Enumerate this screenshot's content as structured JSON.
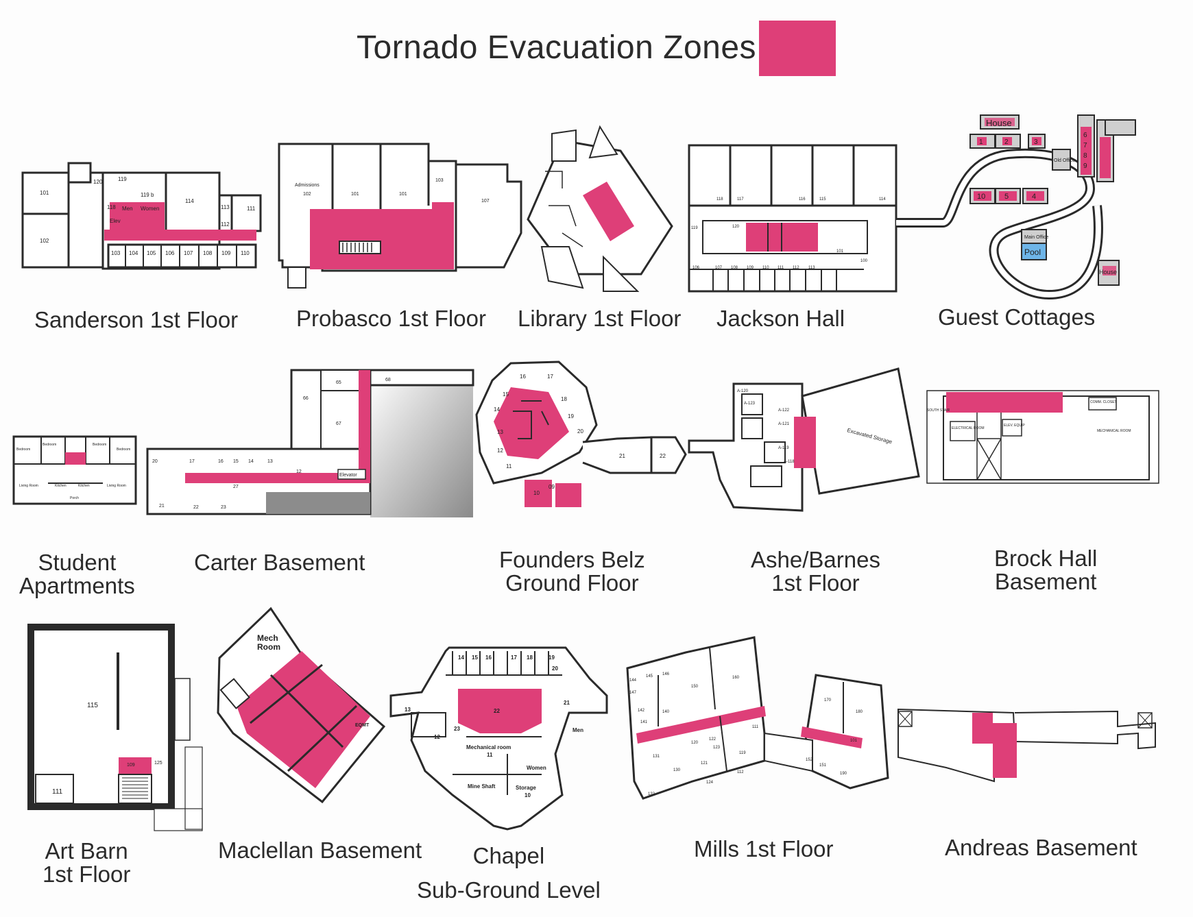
{
  "title": "Tornado Evacuation Zones",
  "colors": {
    "zone": "#de3f78",
    "line": "#2a2a2a",
    "pool": "#6eb5e8",
    "cottage_fill": "#cfcfcf"
  },
  "buildings": [
    {
      "id": "sanderson",
      "caption": "Sanderson 1st Floor",
      "rooms": [
        "101",
        "102",
        "119",
        "119 b",
        "114",
        "113",
        "112",
        "111",
        "120",
        "118",
        "103",
        "104",
        "105",
        "106",
        "107",
        "108",
        "109",
        "110",
        "Elev",
        "Men",
        "Women"
      ]
    },
    {
      "id": "probasco",
      "caption": "Probasco 1st Floor",
      "rooms": [
        "Admissions",
        "102",
        "101",
        "101",
        "103",
        "107"
      ]
    },
    {
      "id": "library",
      "caption": "Library 1st Floor",
      "rooms": []
    },
    {
      "id": "jackson",
      "caption": "Jackson Hall",
      "rooms": [
        "118",
        "117",
        "116",
        "115",
        "114",
        "119",
        "120",
        "101",
        "100",
        "106",
        "107",
        "108",
        "109",
        "110",
        "111",
        "112",
        "113"
      ]
    },
    {
      "id": "cottages",
      "caption": "Guest Cottages",
      "rooms": [
        "House",
        "1",
        "2",
        "3",
        "6",
        "7",
        "8",
        "9",
        "Old Office",
        "10",
        "5",
        "4",
        "Main Office",
        "Pool",
        "House"
      ]
    },
    {
      "id": "student-apts",
      "caption": "Student\nApartments",
      "rooms": [
        "Bedroom",
        "Bedroom",
        "Bedroom",
        "Bedroom",
        "Living Room",
        "Kitchen",
        "Kitchen",
        "Living Room",
        "Porch"
      ]
    },
    {
      "id": "carter",
      "caption": "Carter Basement",
      "rooms": [
        "65",
        "68",
        "66",
        "67",
        "20",
        "17",
        "16",
        "15",
        "14",
        "13",
        "12",
        "27",
        "21",
        "22",
        "23",
        "Elevator"
      ]
    },
    {
      "id": "founders",
      "caption": "Founders Belz\nGround Floor",
      "rooms": [
        "16",
        "17",
        "15",
        "18",
        "14",
        "19",
        "13",
        "20",
        "12",
        "11",
        "09",
        "10",
        "21",
        "22"
      ]
    },
    {
      "id": "ashe",
      "caption": "Ashe/Barnes\n1st Floor",
      "rooms": [
        "A-120",
        "A-123",
        "A-122",
        "A-121",
        "A-119",
        "A-118",
        "Excavated Storage"
      ]
    },
    {
      "id": "brock",
      "caption": "Brock Hall\nBasement",
      "rooms": [
        "SOUTH STAIR",
        "ELECTRICAL ROOM",
        "ELEV. EQUIP",
        "MECHANICAL ROOM",
        "COMM. CLOSET"
      ]
    },
    {
      "id": "art-barn",
      "caption": "Art Barn\n1st Floor",
      "rooms": [
        "115",
        "111",
        "109",
        "125"
      ]
    },
    {
      "id": "maclellan",
      "caption": "Maclellan Basement",
      "rooms": [
        "Mech\nRoom",
        "EQMT"
      ]
    },
    {
      "id": "chapel",
      "caption": "Chapel\nSub-Ground Level",
      "rooms": [
        "14",
        "15",
        "16",
        "17",
        "18",
        "19",
        "20",
        "13",
        "22",
        "21",
        "23",
        "12",
        "Men",
        "Mechanical room",
        "11",
        "Women",
        "Mine Shaft",
        "Storage",
        "10"
      ]
    },
    {
      "id": "mills",
      "caption": "Mills 1st Floor",
      "rooms": [
        "144",
        "145",
        "146",
        "147",
        "142",
        "141",
        "140",
        "150",
        "160",
        "170",
        "180",
        "111",
        "120",
        "122",
        "123",
        "121",
        "131",
        "130",
        "124",
        "119",
        "112",
        "132",
        "152",
        "151",
        "190",
        "101"
      ]
    },
    {
      "id": "andreas",
      "caption": "Andreas Basement",
      "rooms": []
    }
  ]
}
